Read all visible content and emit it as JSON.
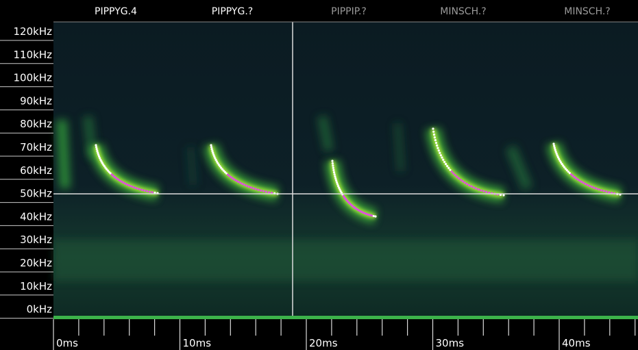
{
  "species_labels": [
    "PIPPYG.4",
    "PIPPYG.?",
    "PIPPIP.?",
    "MINSCH.?",
    "MINSCH.?"
  ],
  "frequency_axis": [
    "120kHz",
    "110kHz",
    "100kHz",
    "90kHz",
    "80kHz",
    "70kHz",
    "60kHz",
    "50kHz",
    "40kHz",
    "30kHz",
    "20kHz",
    "10kHz",
    "0kHz"
  ],
  "time_axis": [
    "0ms",
    "10ms",
    "20ms",
    "30ms",
    "40ms"
  ]
}
